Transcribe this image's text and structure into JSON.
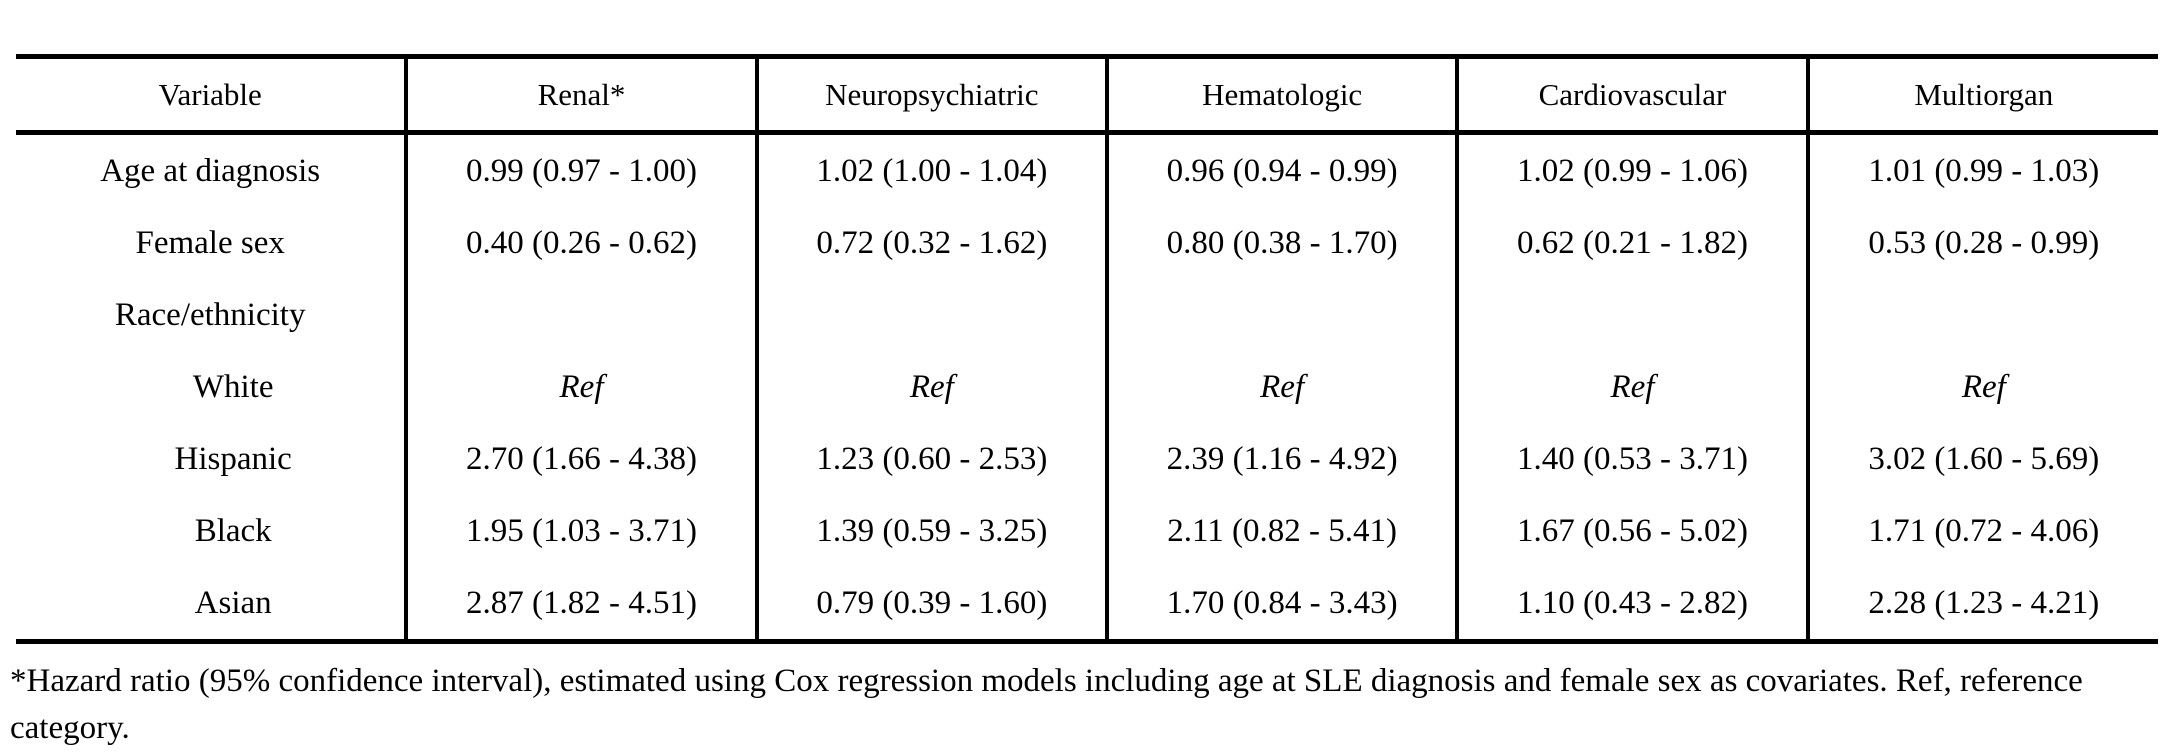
{
  "table": {
    "columns": [
      "Variable",
      "Renal*",
      "Neuropsychiatric",
      "Hematologic",
      "Cardiovascular",
      "Multiorgan"
    ],
    "rows": [
      {
        "label": "Age at diagnosis",
        "indent": false,
        "italic_values": false,
        "values": [
          "0.99 (0.97 - 1.00)",
          "1.02 (1.00 - 1.04)",
          "0.96 (0.94 - 0.99)",
          "1.02 (0.99 - 1.06)",
          "1.01 (0.99 - 1.03)"
        ]
      },
      {
        "label": "Female sex",
        "indent": false,
        "italic_values": false,
        "values": [
          "0.40 (0.26 - 0.62)",
          "0.72 (0.32 - 1.62)",
          "0.80 (0.38 - 1.70)",
          "0.62 (0.21 - 1.82)",
          "0.53 (0.28 - 0.99)"
        ]
      },
      {
        "label": "Race/ethnicity",
        "indent": false,
        "italic_values": false,
        "values": [
          "",
          "",
          "",
          "",
          ""
        ]
      },
      {
        "label": "White",
        "indent": true,
        "italic_values": true,
        "values": [
          "Ref",
          "Ref",
          "Ref",
          "Ref",
          "Ref"
        ]
      },
      {
        "label": "Hispanic",
        "indent": true,
        "italic_values": false,
        "values": [
          "2.70 (1.66 - 4.38)",
          "1.23 (0.60 - 2.53)",
          "2.39 (1.16 - 4.92)",
          "1.40 (0.53 - 3.71)",
          "3.02 (1.60 - 5.69)"
        ]
      },
      {
        "label": "Black",
        "indent": true,
        "italic_values": false,
        "values": [
          "1.95 (1.03 - 3.71)",
          "1.39 (0.59 - 3.25)",
          "2.11 (0.82 - 5.41)",
          "1.67 (0.56 - 5.02)",
          "1.71 (0.72 - 4.06)"
        ]
      },
      {
        "label": "Asian",
        "indent": true,
        "italic_values": false,
        "values": [
          "2.87 (1.82 - 4.51)",
          "0.79 (0.39 - 1.60)",
          "1.70 (0.84 - 3.43)",
          "1.10 (0.43 - 2.82)",
          "2.28 (1.23 - 4.21)"
        ]
      }
    ],
    "footnote": "*Hazard ratio (95% confidence interval), estimated using Cox regression models including age at SLE diagnosis and female sex as covariates. Ref, reference category."
  },
  "colors": {
    "text": "#000000",
    "background": "#ffffff",
    "border": "#000000"
  }
}
